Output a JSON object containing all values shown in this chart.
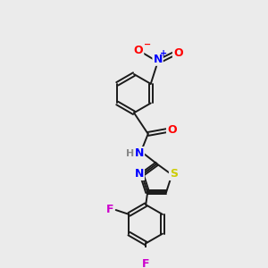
{
  "background_color": "#ebebeb",
  "bond_color": "#1a1a1a",
  "atom_colors": {
    "O": "#ff0000",
    "N": "#0000ff",
    "S": "#cccc00",
    "F": "#cc00cc",
    "H": "#888888",
    "C": "#1a1a1a"
  },
  "bond_lw": 1.4,
  "ring_r": 22,
  "thz_r": 18,
  "font_size": 9
}
